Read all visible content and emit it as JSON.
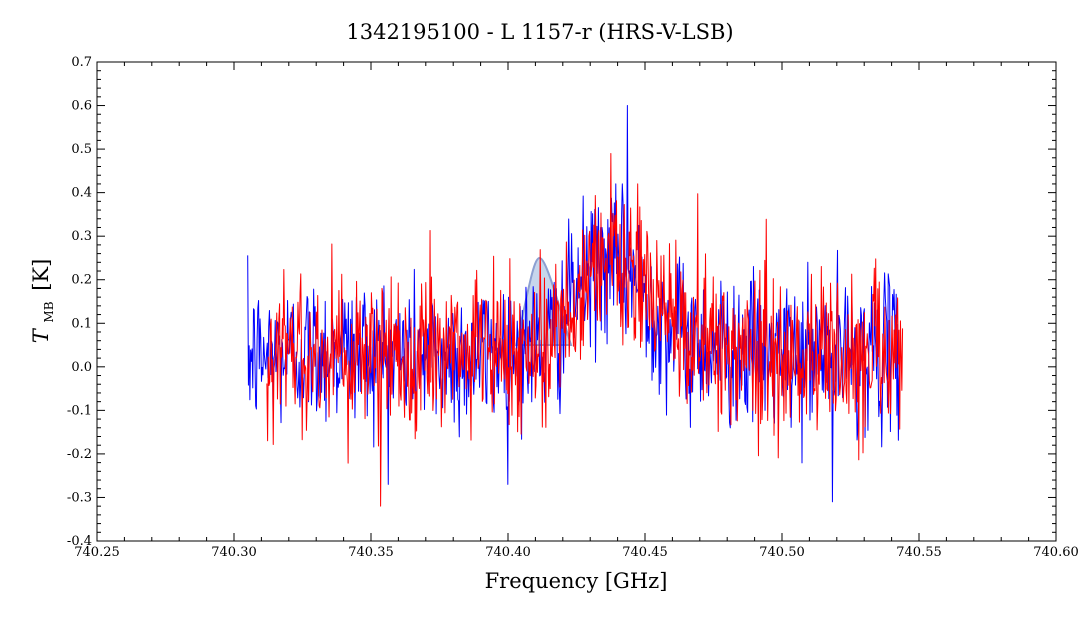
{
  "chart_data": {
    "type": "line",
    "title": "1342195100 - L 1157-r (HRS-V-LSB)",
    "xlabel": "Frequency [GHz]",
    "ylabel": {
      "symbol": "T",
      "subscript": "MB",
      "unit": "[K]"
    },
    "xlim": [
      740.25,
      740.6
    ],
    "ylim": [
      -0.4,
      0.7
    ],
    "x_ticks": [
      "740.25",
      "740.30",
      "740.35",
      "740.40",
      "740.45",
      "740.50",
      "740.55",
      "740.60"
    ],
    "y_ticks": [
      "-0.4",
      "-0.3",
      "-0.2",
      "-0.1",
      "0.0",
      "0.1",
      "0.2",
      "0.3",
      "0.4",
      "0.5",
      "0.6",
      "0.7"
    ],
    "grid": false,
    "colors": {
      "blue_series": "#0000ff",
      "red_series": "#ff0000",
      "highlight_fill": "#b4c8e6",
      "highlight_edge": "#8ca0d2"
    },
    "series": [
      {
        "color": "#0000ff",
        "x_range": [
          740.305,
          740.543
        ],
        "profile": [
          [
            740.305,
            0.02
          ],
          [
            740.32,
            0.03
          ],
          [
            740.34,
            0.04
          ],
          [
            740.36,
            0.03
          ],
          [
            740.38,
            0.02
          ],
          [
            740.4,
            0.04
          ],
          [
            740.415,
            0.05
          ],
          [
            740.42,
            0.1
          ],
          [
            740.425,
            0.18
          ],
          [
            740.435,
            0.24
          ],
          [
            740.445,
            0.22
          ],
          [
            740.455,
            0.12
          ],
          [
            740.465,
            0.06
          ],
          [
            740.48,
            0.04
          ],
          [
            740.5,
            0.02
          ],
          [
            740.52,
            0.03
          ],
          [
            740.543,
            0.03
          ]
        ],
        "noise_sigma": 0.085,
        "peak": [
          740.4435,
          0.6
        ],
        "dip": [
          740.5185,
          -0.31
        ]
      },
      {
        "color": "#ff0000",
        "x_range": [
          740.312,
          740.544
        ],
        "profile": [
          [
            740.312,
            0.03
          ],
          [
            740.33,
            0.04
          ],
          [
            740.35,
            0.03
          ],
          [
            740.37,
            0.02
          ],
          [
            740.39,
            0.03
          ],
          [
            740.405,
            0.04
          ],
          [
            740.415,
            0.06
          ],
          [
            740.422,
            0.13
          ],
          [
            740.43,
            0.22
          ],
          [
            740.438,
            0.24
          ],
          [
            740.448,
            0.2
          ],
          [
            740.458,
            0.12
          ],
          [
            740.468,
            0.06
          ],
          [
            740.48,
            0.04
          ],
          [
            740.5,
            0.03
          ],
          [
            740.52,
            0.03
          ],
          [
            740.544,
            0.04
          ]
        ],
        "noise_sigma": 0.09,
        "peak": [
          740.4375,
          0.49
        ],
        "dip": [
          740.3535,
          -0.32
        ]
      }
    ],
    "highlight": {
      "x_range": [
        740.403,
        740.423
      ],
      "y_base": 0.05,
      "y_top": 0.25,
      "x_peak": 740.4115
    }
  }
}
